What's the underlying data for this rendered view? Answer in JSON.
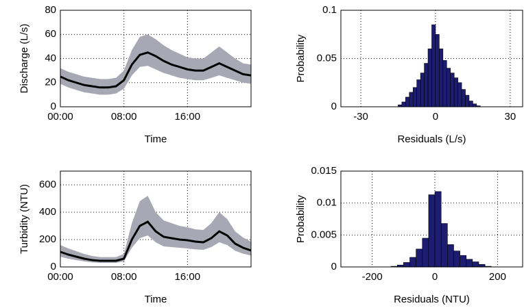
{
  "chart_data": [
    {
      "type": "line",
      "ylabel": "Discharge (L/s)",
      "xlabel": "Time",
      "x": [
        0,
        1,
        2,
        3,
        4,
        5,
        6,
        7,
        8,
        9,
        10,
        11,
        12,
        13,
        14,
        15,
        16,
        17,
        18,
        19,
        20,
        21,
        22,
        23,
        24
      ],
      "series": [
        {
          "color": "#000000",
          "values": [
            25,
            22,
            20,
            18,
            17,
            16,
            16,
            17,
            22,
            35,
            43,
            45,
            42,
            38,
            35,
            33,
            31,
            30,
            30,
            33,
            36,
            33,
            30,
            27,
            26
          ]
        }
      ],
      "band": {
        "color": "#a8a8b4",
        "lower": [
          19,
          16,
          14,
          12,
          11,
          10,
          10,
          11,
          15,
          26,
          33,
          34,
          31,
          28,
          26,
          24,
          23,
          22,
          22,
          24,
          26,
          24,
          22,
          20,
          19
        ],
        "upper": [
          32,
          29,
          27,
          25,
          24,
          23,
          23,
          24,
          30,
          47,
          58,
          60,
          56,
          51,
          47,
          44,
          41,
          40,
          40,
          45,
          50,
          45,
          40,
          36,
          35
        ]
      },
      "xlim": [
        0,
        24
      ],
      "xticks": [
        {
          "value": 0,
          "label": "00:00"
        },
        {
          "value": 8,
          "label": "08:00"
        },
        {
          "value": 16,
          "label": "16:00"
        }
      ],
      "ylim": [
        0,
        80
      ],
      "yticks": [
        0,
        20,
        40,
        60,
        80
      ],
      "grid": true
    },
    {
      "type": "histogram",
      "ylabel": "Probability",
      "xlabel": "Residuals (L/s)",
      "bins": [
        -15,
        -13.5,
        -12,
        -10.5,
        -9,
        -7.5,
        -6,
        -4.5,
        -3,
        -1.5,
        0,
        1.5,
        3,
        4.5,
        6,
        7.5,
        9,
        10.5,
        12,
        13.5,
        15,
        16.5,
        18
      ],
      "values": [
        0.002,
        0.005,
        0.01,
        0.015,
        0.02,
        0.028,
        0.035,
        0.045,
        0.06,
        0.085,
        0.075,
        0.06,
        0.048,
        0.04,
        0.035,
        0.03,
        0.025,
        0.018,
        0.012,
        0.006,
        0.003,
        0.001
      ],
      "color": "#1c1c70",
      "xlim": [
        -38,
        35
      ],
      "xticks": [
        -30,
        0,
        30
      ],
      "ylim": [
        0,
        0.1
      ],
      "yticks": [
        0,
        0.05,
        0.1
      ],
      "grid": true
    },
    {
      "type": "line",
      "ylabel": "Turbidity (NTU)",
      "xlabel": "Time",
      "x": [
        0,
        1,
        2,
        3,
        4,
        5,
        6,
        7,
        8,
        9,
        10,
        11,
        12,
        13,
        14,
        15,
        16,
        17,
        18,
        19,
        20,
        21,
        22,
        23,
        24
      ],
      "series": [
        {
          "color": "#000000",
          "values": [
            110,
            90,
            75,
            60,
            50,
            45,
            45,
            45,
            60,
            200,
            300,
            330,
            260,
            220,
            210,
            200,
            195,
            185,
            180,
            210,
            260,
            230,
            170,
            140,
            120
          ]
        }
      ],
      "band": {
        "color": "#a8a8b4",
        "lower": [
          75,
          60,
          50,
          40,
          33,
          30,
          30,
          30,
          40,
          140,
          210,
          230,
          180,
          150,
          145,
          140,
          135,
          128,
          125,
          145,
          180,
          160,
          118,
          97,
          83
        ],
        "upper": [
          160,
          135,
          115,
          95,
          80,
          72,
          72,
          72,
          95,
          320,
          480,
          520,
          400,
          340,
          320,
          300,
          290,
          275,
          270,
          320,
          400,
          350,
          260,
          215,
          185
        ]
      },
      "xlim": [
        0,
        24
      ],
      "xticks": [
        {
          "value": 0,
          "label": "00:00"
        },
        {
          "value": 8,
          "label": "08:00"
        },
        {
          "value": 16,
          "label": "16:00"
        }
      ],
      "ylim": [
        0,
        700
      ],
      "yticks": [
        0,
        200,
        400,
        600
      ],
      "grid": true
    },
    {
      "type": "histogram",
      "ylabel": "Probability",
      "xlabel": "Residuals (NTU)",
      "bins": [
        -140,
        -120,
        -100,
        -80,
        -60,
        -40,
        -20,
        0,
        20,
        40,
        60,
        80,
        100,
        120,
        140,
        160,
        180
      ],
      "values": [
        0.0001,
        0.0003,
        0.0007,
        0.0015,
        0.0028,
        0.0045,
        0.0113,
        0.0118,
        0.0068,
        0.0035,
        0.0025,
        0.0018,
        0.0012,
        0.0008,
        0.0004,
        0.0001
      ],
      "color": "#1c1c70",
      "xlim": [
        -300,
        280
      ],
      "xticks": [
        -200,
        0,
        200
      ],
      "ylim": [
        0,
        0.015
      ],
      "yticks": [
        0,
        0.005,
        0.01,
        0.015
      ],
      "grid": true
    }
  ]
}
